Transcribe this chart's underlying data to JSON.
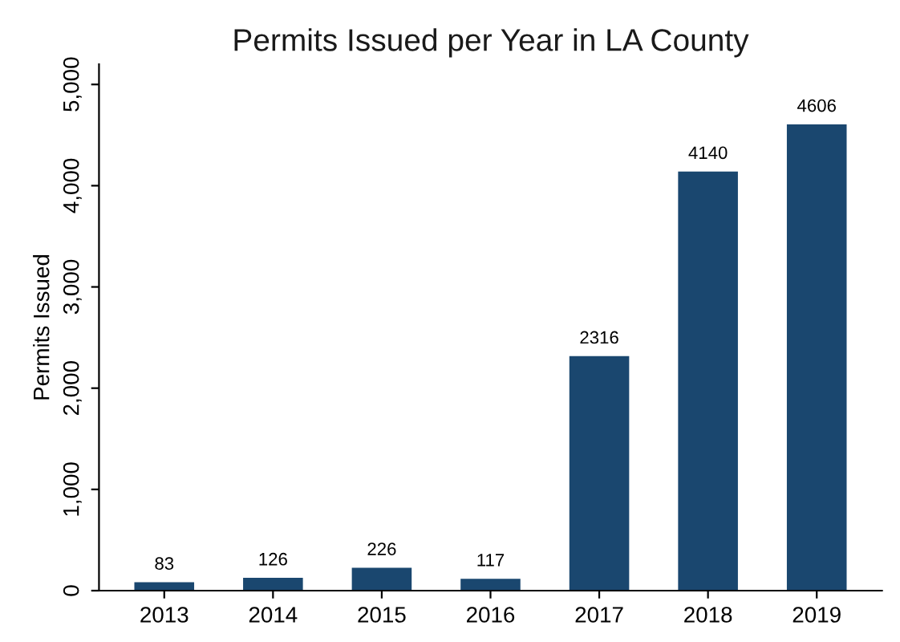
{
  "chart_data": {
    "type": "bar",
    "title": "Permits Issued per Year in LA County",
    "ylabel": "Permits Issued",
    "categories": [
      "2013",
      "2014",
      "2015",
      "2016",
      "2017",
      "2018",
      "2019"
    ],
    "values": [
      83,
      126,
      226,
      117,
      2316,
      4140,
      4606
    ],
    "color": "#1a476f",
    "ylim": [
      0,
      5200
    ],
    "yticks": [
      0,
      {
        "value": 1000,
        "label": "1,000"
      },
      {
        "value": 2000,
        "label": "2,000"
      },
      {
        "value": 3000,
        "label": "3,000"
      },
      {
        "value": 4000,
        "label": "4,000"
      },
      {
        "value": 5000,
        "label": "5,000"
      }
    ],
    "data_labels": true,
    "grid": false,
    "legend": false
  }
}
